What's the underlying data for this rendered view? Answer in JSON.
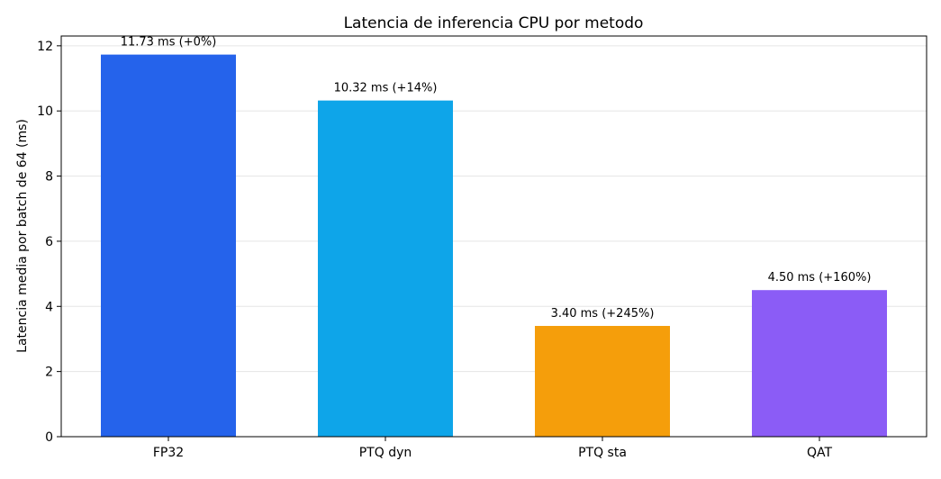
{
  "chart_data": {
    "type": "bar",
    "title": "Latencia de inferencia CPU por metodo",
    "xlabel": "",
    "ylabel": "Latencia media por batch de 64 (ms)",
    "ylim": [
      0,
      12.3
    ],
    "yticks": [
      0,
      2,
      4,
      6,
      8,
      10,
      12
    ],
    "grid": "y",
    "legend": "none",
    "categories": [
      "FP32",
      "PTQ dyn",
      "PTQ sta",
      "QAT"
    ],
    "values": [
      11.73,
      10.32,
      3.4,
      4.5
    ],
    "data_labels": [
      "11.73 ms (+0%)",
      "10.32 ms (+14%)",
      "3.40 ms (+245%)",
      "4.50 ms (+160%)"
    ],
    "colors": [
      "#2563eb",
      "#0ea5e9",
      "#f59e0b",
      "#8b5cf6"
    ]
  }
}
